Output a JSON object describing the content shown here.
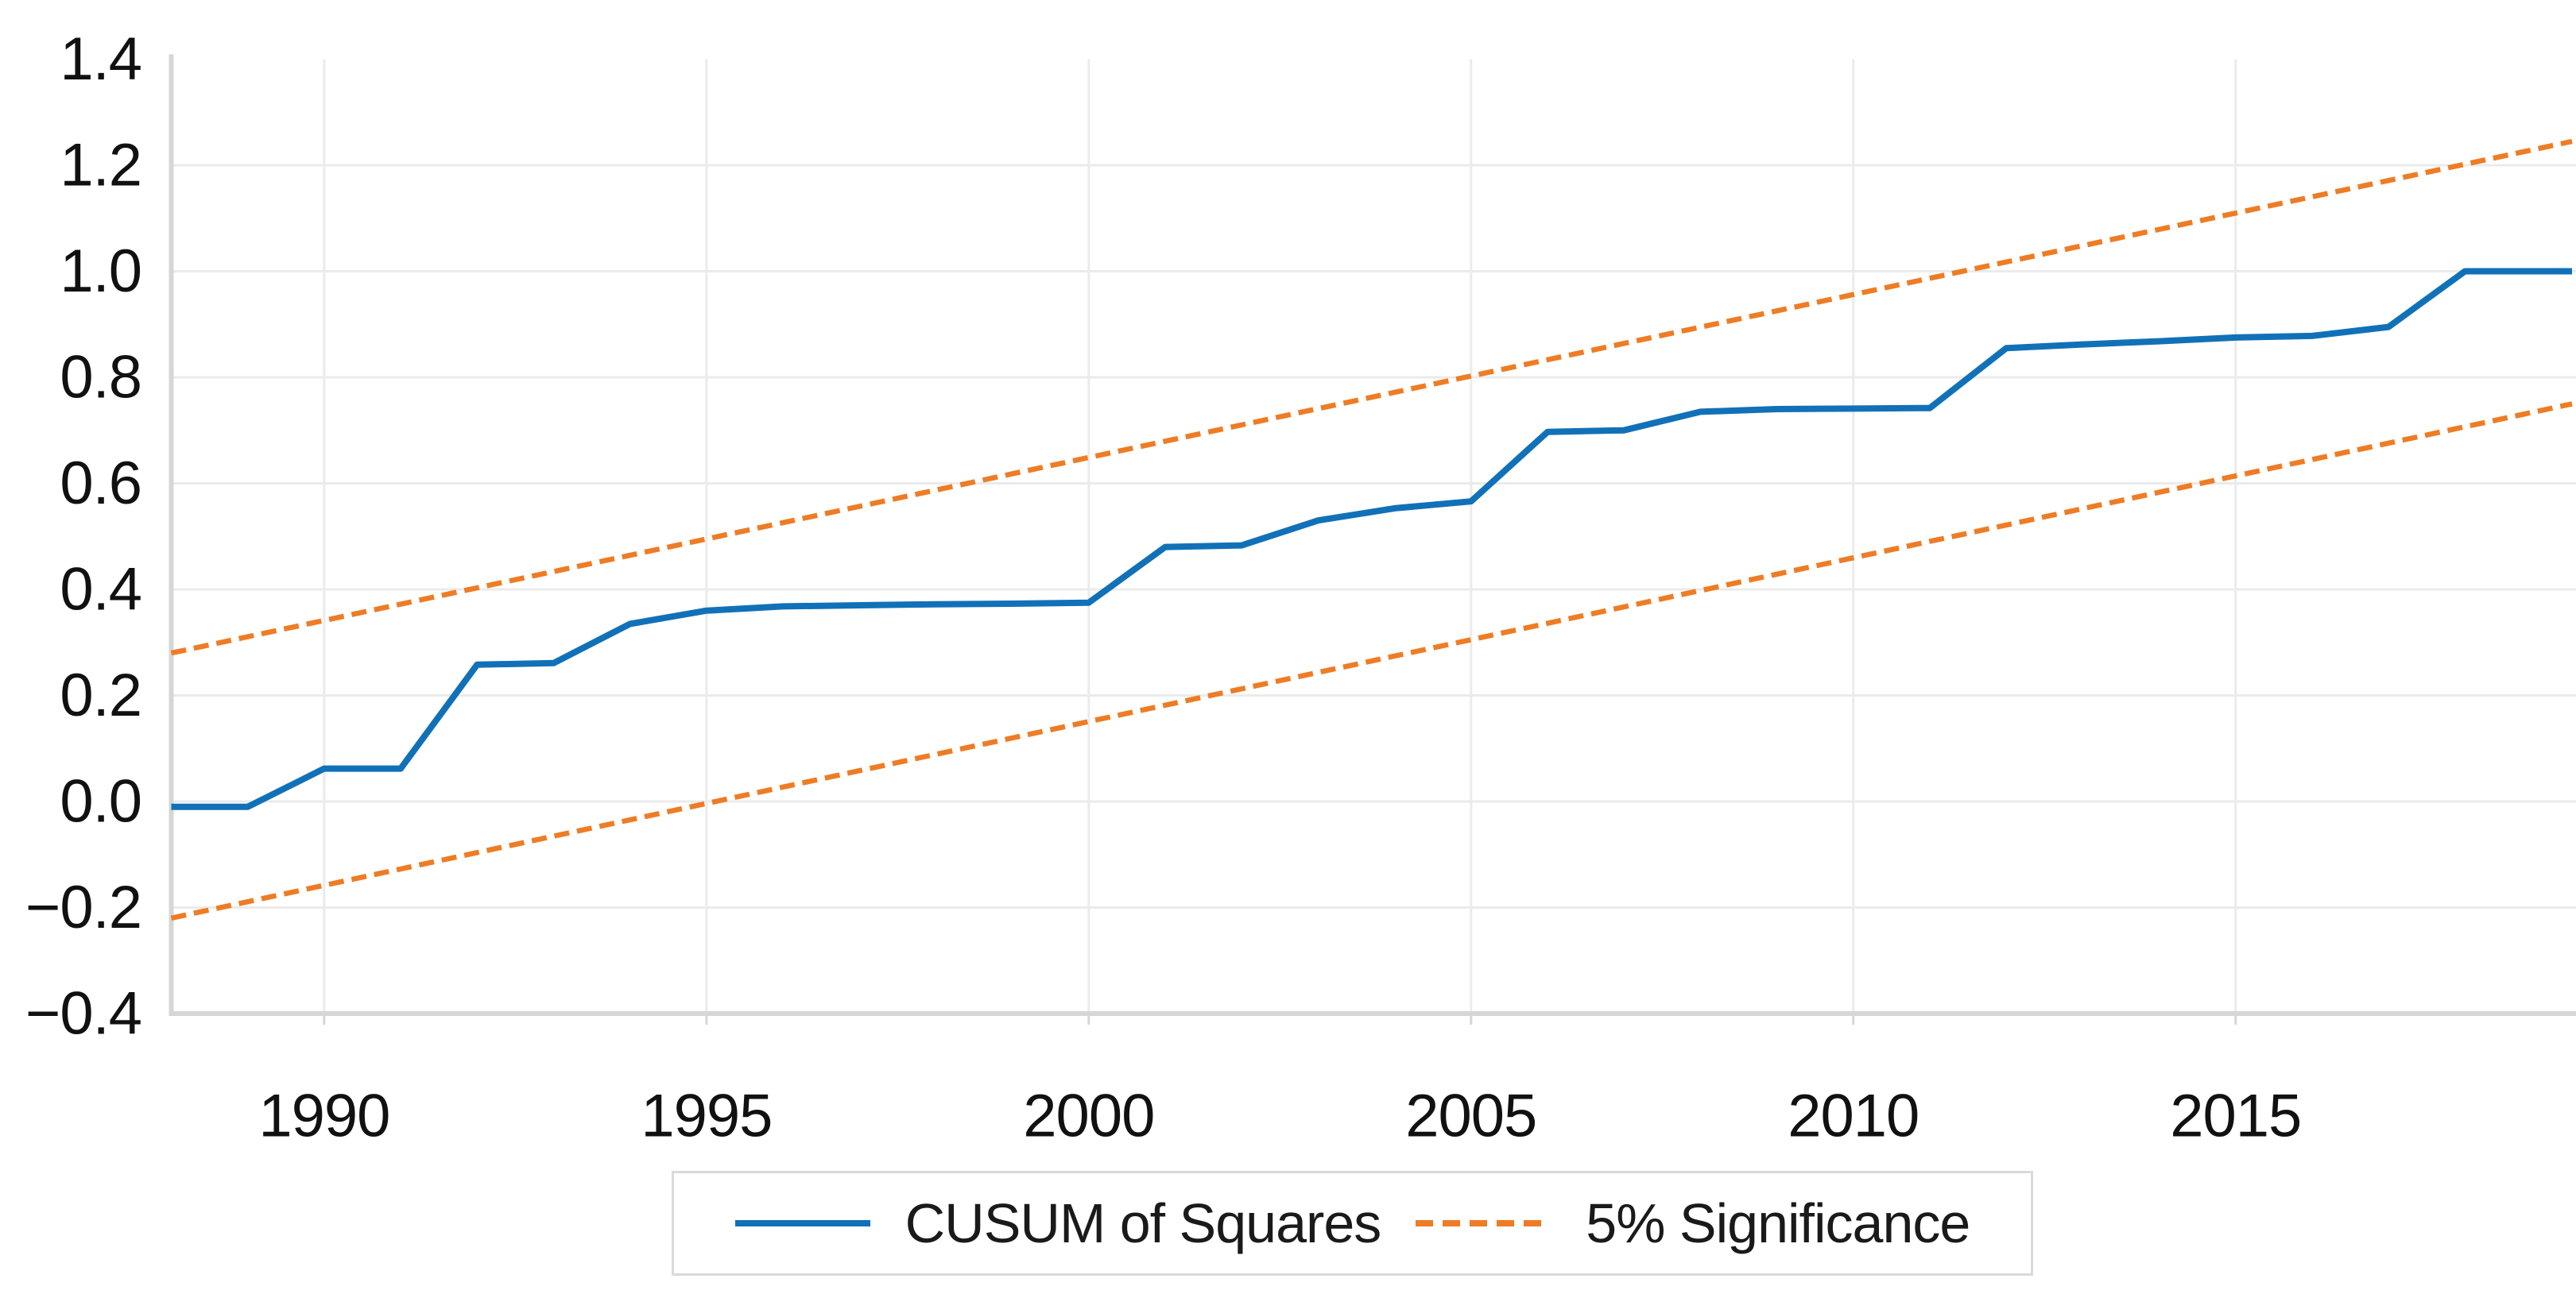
{
  "chart_data": {
    "type": "line",
    "title": "",
    "grid": true,
    "legend_position": "bottom-center",
    "x_axis": {
      "lim": [
        1988,
        2019.4
      ],
      "ticks": [
        {
          "v": 1990,
          "label": "1990"
        },
        {
          "v": 1995,
          "label": "1995"
        },
        {
          "v": 2000,
          "label": "2000"
        },
        {
          "v": 2005,
          "label": "2005"
        },
        {
          "v": 2010,
          "label": "2010"
        },
        {
          "v": 2015,
          "label": "2015"
        }
      ]
    },
    "y_axis": {
      "lim": [
        -0.4,
        1.4
      ],
      "ticks": [
        {
          "v": 1.4,
          "label": "1.4"
        },
        {
          "v": 1.2,
          "label": "1.2"
        },
        {
          "v": 1.0,
          "label": "1.0"
        },
        {
          "v": 0.8,
          "label": "0.8"
        },
        {
          "v": 0.6,
          "label": "0.6"
        },
        {
          "v": 0.4,
          "label": "0.4"
        },
        {
          "v": 0.2,
          "label": "0.2"
        },
        {
          "v": 0.0,
          "label": "0.0"
        },
        {
          "v": -0.2,
          "label": "−0.2"
        },
        {
          "v": -0.4,
          "label": "−0.4"
        }
      ]
    },
    "series": [
      {
        "name": "CUSUM of Squares",
        "color": "#1171B8",
        "dash": false,
        "extend_to_xlim": true,
        "x": [
          1988,
          1989,
          1990,
          1991,
          1992,
          1993,
          1994,
          1995,
          1996,
          1997,
          1998,
          1999,
          2000,
          2001,
          2002,
          2003,
          2004,
          2005,
          2006,
          2007,
          2008,
          2009,
          2010,
          2011,
          2012,
          2013,
          2014,
          2015,
          2016,
          2017,
          2018,
          2019
        ],
        "y": [
          -0.01,
          -0.01,
          0.062,
          0.062,
          0.258,
          0.261,
          0.335,
          0.36,
          0.368,
          0.37,
          0.372,
          0.373,
          0.375,
          0.48,
          0.483,
          0.53,
          0.553,
          0.566,
          0.697,
          0.7,
          0.735,
          0.74,
          0.741,
          0.742,
          0.855,
          0.862,
          0.868,
          0.875,
          0.878,
          0.895,
          1.0,
          1.0
        ]
      },
      {
        "name": "5% Significance (upper band)",
        "color": "#EE7C25",
        "dash": true,
        "x": [
          1988,
          2019.4
        ],
        "y": [
          0.28,
          1.245
        ]
      },
      {
        "name": "5% Significance (lower band)",
        "color": "#EE7C25",
        "dash": true,
        "x": [
          1988,
          2019.4
        ],
        "y": [
          -0.22,
          0.75
        ]
      }
    ]
  },
  "legend": {
    "items": [
      {
        "label": "CUSUM of Squares",
        "swatch": "solid-line",
        "color": "#1171B8"
      },
      {
        "label": "5% Significance",
        "swatch": "dashed-line",
        "color": "#EE7C25"
      }
    ]
  },
  "colors": {
    "background": "#FFFFFF",
    "gridline": "#EBEBEB",
    "axis_spine": "#D6D6D6",
    "tick_text": "#111111",
    "legend_border": "#DADADA",
    "legend_text": "#1A1A1A"
  }
}
